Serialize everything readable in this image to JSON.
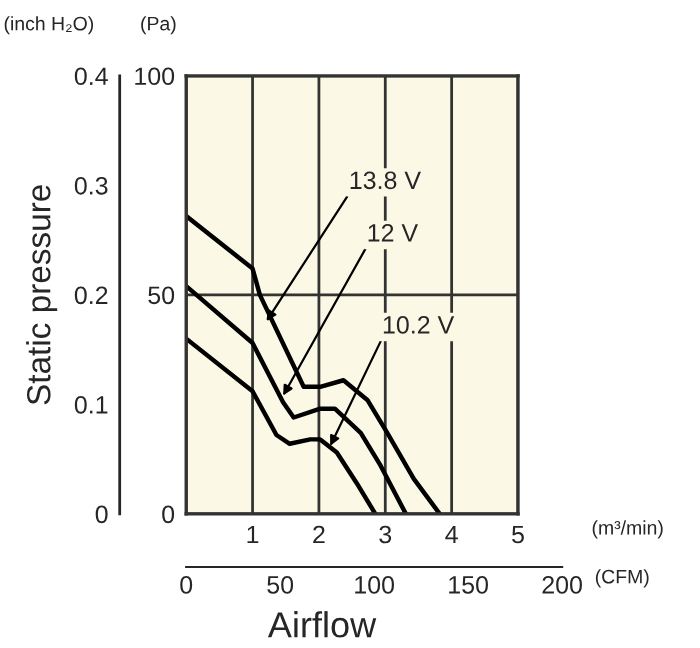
{
  "chart_data": {
    "type": "line",
    "xlabel": "Airflow",
    "ylabel": "Static pressure",
    "y2label": "(Pa)",
    "x2label": "(CFM)",
    "xlim": [
      0,
      5
    ],
    "xticks": [
      {
        "value": 0,
        "label": null
      },
      1,
      2,
      3,
      4,
      5
    ],
    "ylim": [
      0,
      0.4
    ],
    "yticks": [
      0,
      0.1,
      0.2,
      0.3,
      0.4
    ],
    "y2lim": [
      0,
      100
    ],
    "y2ticks": [
      0,
      50,
      100
    ],
    "x2lim": [
      0,
      200
    ],
    "x2ticks": [
      0,
      50,
      100,
      150,
      200
    ],
    "grid": true,
    "legend": false,
    "marker": "none",
    "line_style": "solid",
    "series": [
      {
        "axis": "y2",
        "color": "#000000",
        "x": [
          0,
          1,
          1.11,
          1.77,
          2.02,
          2.37,
          2.73,
          3.03,
          3.43,
          3.82
        ],
        "values": [
          68,
          56,
          50,
          29,
          29,
          30.5,
          26,
          18.5,
          8,
          0
        ]
      },
      {
        "axis": "y2",
        "color": "#000000",
        "x": [
          0,
          1,
          1.46,
          1.62,
          2.02,
          2.24,
          2.63,
          2.93,
          3.31
        ],
        "values": [
          52,
          39,
          25.5,
          22,
          24,
          24,
          18.5,
          11,
          0
        ]
      },
      {
        "axis": "y2",
        "color": "#000000",
        "x": [
          0,
          1,
          1.36,
          1.56,
          1.87,
          2.02,
          2.27,
          2.57,
          2.85
        ],
        "values": [
          40,
          28,
          18,
          16,
          17,
          17,
          14,
          7,
          0
        ]
      }
    ],
    "annotations": [
      "(inch H₂O)",
      "(m³/min)",
      {
        "text": "13.8 V",
        "x": 1.21,
        "y": 0.176
      },
      {
        "text": "12 V",
        "x": 1.46,
        "y": 0.108
      },
      {
        "text": "10.2 V",
        "x": 2.17,
        "y": 0.062
      }
    ]
  }
}
